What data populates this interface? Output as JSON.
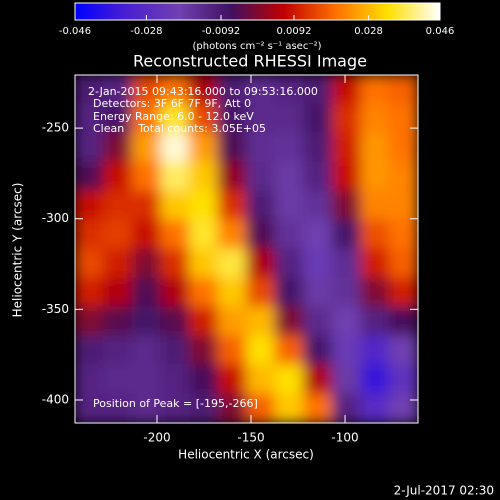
{
  "chart_data": {
    "type": "image",
    "title": "Reconstructed RHESSI Image",
    "x_label": "Heliocentric X (arcsec)",
    "y_label": "Heliocentric Y (arcsec)",
    "colorbar_label": "(photons cm⁻² s⁻¹ asec⁻²)",
    "annotations": [
      "2-Jan-2015 09:43:16.000 to 09:53:16.000",
      "Detectors: 3F 6F 7F 9F, Att 0",
      "Energy Range: 6.0 - 12.0 keV",
      "Clean    Total counts: 3.05E+05"
    ],
    "peak_label": "Position of Peak = [-195,-266]",
    "footer": "2-Jul-2017 02:30",
    "xlim": [
      -243.6,
      -61.2
    ],
    "xticks": [
      -200,
      -150,
      -100
    ],
    "ylim": [
      -412.7,
      -220.7
    ],
    "yticks": [
      -250,
      -300,
      -350,
      -400
    ],
    "zlim": [
      -0.046,
      0.046
    ],
    "zticks": [
      -0.046,
      -0.028,
      -0.0092,
      0.0092,
      0.028,
      0.046
    ],
    "colormap": [
      "#0000ff",
      "#4a20d0",
      "#7040b0",
      "#401060",
      "#c00000",
      "#ff7000",
      "#ffe000",
      "#ffffff"
    ],
    "z": [
      [
        -0.01,
        -0.012,
        0.015,
        0.02,
        0.005,
        -0.01,
        -0.014,
        -0.012,
        -0.01,
        0.008,
        0.02,
        0.018
      ],
      [
        -0.012,
        -0.008,
        0.02,
        0.035,
        0.015,
        -0.008,
        -0.014,
        -0.014,
        -0.008,
        0.012,
        0.022,
        0.02
      ],
      [
        -0.012,
        0.0,
        0.025,
        0.044,
        0.025,
        -0.005,
        -0.015,
        -0.016,
        -0.01,
        0.01,
        0.024,
        0.02
      ],
      [
        -0.005,
        0.008,
        0.02,
        0.038,
        0.03,
        0.002,
        -0.014,
        -0.018,
        -0.012,
        0.008,
        0.024,
        0.022
      ],
      [
        0.008,
        0.012,
        0.012,
        0.03,
        0.033,
        0.012,
        -0.01,
        -0.018,
        -0.016,
        0.0,
        0.022,
        0.022
      ],
      [
        0.012,
        0.014,
        0.008,
        0.02,
        0.035,
        0.022,
        -0.005,
        -0.016,
        -0.02,
        -0.008,
        0.016,
        0.02
      ],
      [
        0.015,
        0.01,
        0.0,
        0.012,
        0.03,
        0.036,
        0.005,
        -0.012,
        -0.022,
        -0.015,
        0.01,
        0.018
      ],
      [
        0.01,
        0.005,
        -0.005,
        0.005,
        0.02,
        0.03,
        0.015,
        -0.008,
        -0.018,
        -0.016,
        0.0,
        0.01
      ],
      [
        0.0,
        -0.004,
        -0.008,
        -0.004,
        0.01,
        0.025,
        0.028,
        0.0,
        -0.014,
        -0.02,
        -0.012,
        -0.006
      ],
      [
        -0.01,
        -0.012,
        -0.014,
        -0.01,
        0.0,
        0.018,
        0.033,
        0.018,
        -0.008,
        -0.022,
        -0.03,
        -0.02
      ],
      [
        -0.012,
        -0.014,
        -0.014,
        -0.012,
        -0.006,
        0.008,
        0.028,
        0.033,
        0.005,
        -0.018,
        -0.036,
        -0.025
      ],
      [
        -0.012,
        -0.012,
        -0.014,
        -0.012,
        -0.01,
        0.0,
        0.018,
        0.03,
        0.02,
        -0.012,
        -0.028,
        -0.02
      ]
    ]
  }
}
